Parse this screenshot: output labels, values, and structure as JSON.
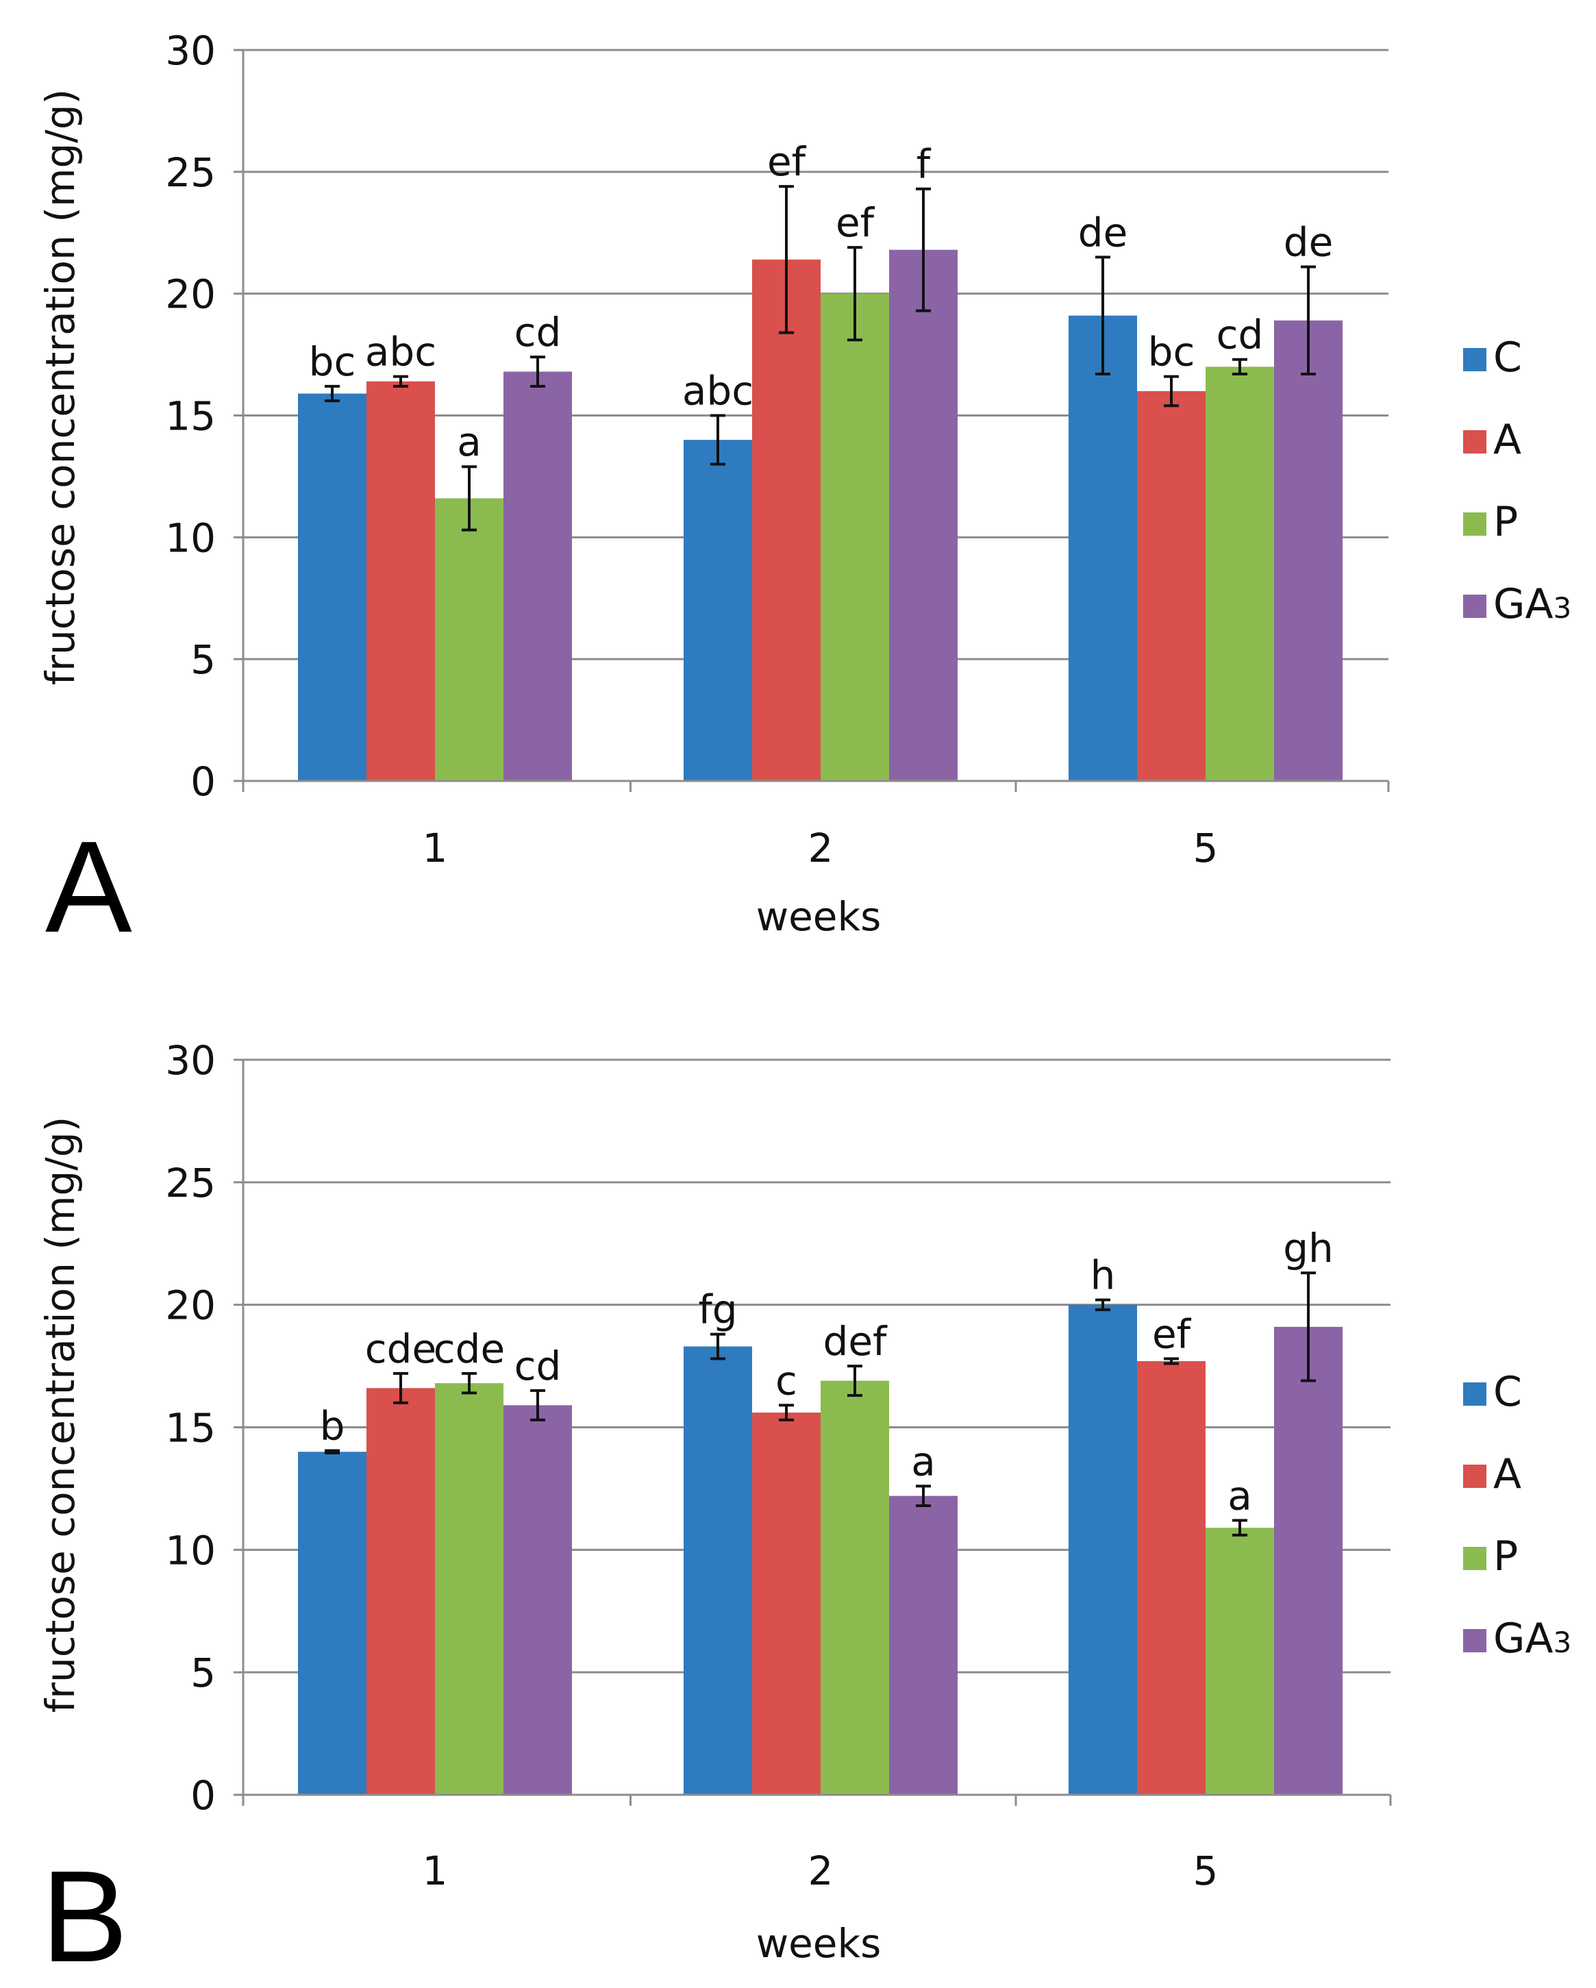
{
  "chart_data": [
    {
      "panel_label": "A",
      "type": "bar",
      "title": "",
      "xlabel": "weeks",
      "ylabel": "fructose concentration (mg/g)",
      "ylim": [
        0,
        30
      ],
      "yticks": [
        "0",
        "5",
        "10",
        "15",
        "20",
        "25",
        "30"
      ],
      "grid": true,
      "legend_position": "right",
      "categories": [
        "1",
        "2",
        "5"
      ],
      "series": [
        {
          "name": "C",
          "color": "#2f7bbf",
          "values": [
            15.9,
            14.0,
            19.1
          ],
          "errors": [
            0.3,
            1.0,
            2.4
          ],
          "labels": [
            "bc",
            "abc",
            "de"
          ]
        },
        {
          "name": "A",
          "color": "#d9504c",
          "values": [
            16.4,
            21.4,
            16.0
          ],
          "errors": [
            0.2,
            3.0,
            0.6
          ],
          "labels": [
            "abc",
            "ef",
            "bc"
          ]
        },
        {
          "name": "P",
          "color": "#8bbb4f",
          "values": [
            11.6,
            20.0,
            17.0
          ],
          "errors": [
            1.3,
            1.9,
            0.3
          ],
          "labels": [
            "a",
            "ef",
            "cd"
          ]
        },
        {
          "name": "GA3",
          "color": "#8b64a6",
          "values": [
            16.8,
            21.8,
            18.9
          ],
          "errors": [
            0.6,
            2.5,
            2.2
          ],
          "labels": [
            "cd",
            "f",
            "de"
          ]
        }
      ]
    },
    {
      "panel_label": "B",
      "type": "bar",
      "title": "",
      "xlabel": "weeks",
      "ylabel": "fructose concentration (mg/g)",
      "ylim": [
        0,
        30
      ],
      "yticks": [
        "0",
        "5",
        "10",
        "15",
        "20",
        "25",
        "30"
      ],
      "grid": true,
      "legend_position": "right",
      "categories": [
        "1",
        "2",
        "5"
      ],
      "series": [
        {
          "name": "C",
          "color": "#2f7bbf",
          "values": [
            14.0,
            18.3,
            20.0
          ],
          "errors": [
            0.05,
            0.5,
            0.2
          ],
          "labels": [
            "b",
            "fg",
            "h"
          ]
        },
        {
          "name": "A",
          "color": "#d9504c",
          "values": [
            16.6,
            15.6,
            17.7
          ],
          "errors": [
            0.6,
            0.3,
            0.1
          ],
          "labels": [
            "cde",
            "c",
            "ef"
          ]
        },
        {
          "name": "P",
          "color": "#8bbb4f",
          "values": [
            16.8,
            16.9,
            10.9
          ],
          "errors": [
            0.4,
            0.6,
            0.3
          ],
          "labels": [
            "cde",
            "def",
            "a"
          ]
        },
        {
          "name": "GA3",
          "color": "#8b64a6",
          "values": [
            15.9,
            12.2,
            19.1
          ],
          "errors": [
            0.6,
            0.4,
            2.2
          ],
          "labels": [
            "cd",
            "a",
            "gh"
          ]
        }
      ]
    }
  ]
}
